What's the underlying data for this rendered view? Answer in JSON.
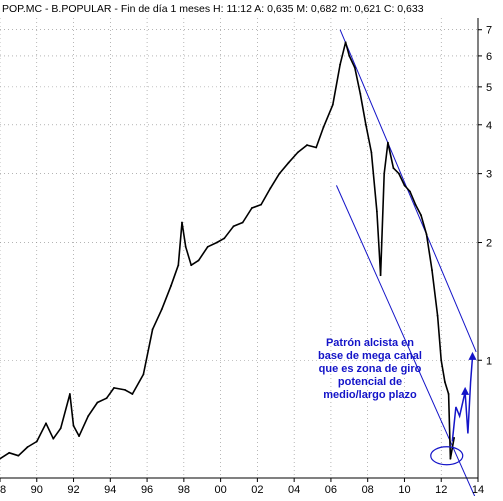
{
  "chart_data": {
    "type": "line",
    "title": "POP.MC - B.POPULAR - Fin de día 1 meses H: 11:12 A: 0,635 M: 0,682 m: 0,621 C: 0,633",
    "xlabel": "",
    "ylabel": "",
    "y_scale": "log",
    "x_range": [
      1988,
      2014
    ],
    "y_range": [
      0.5,
      7.5
    ],
    "x_ticks": [
      {
        "value": 1988,
        "label": "88"
      },
      {
        "value": 1990,
        "label": "90"
      },
      {
        "value": 1992,
        "label": "92"
      },
      {
        "value": 1994,
        "label": "94"
      },
      {
        "value": 1996,
        "label": "96"
      },
      {
        "value": 1998,
        "label": "98"
      },
      {
        "value": 2000,
        "label": "00"
      },
      {
        "value": 2002,
        "label": "02"
      },
      {
        "value": 2004,
        "label": "04"
      },
      {
        "value": 2006,
        "label": "06"
      },
      {
        "value": 2008,
        "label": "08"
      },
      {
        "value": 2010,
        "label": "10"
      },
      {
        "value": 2012,
        "label": "12"
      },
      {
        "value": 2014,
        "label": "14"
      }
    ],
    "y_ticks": [
      {
        "value": 1,
        "label": "1"
      },
      {
        "value": 2,
        "label": "2"
      },
      {
        "value": 3,
        "label": "3"
      },
      {
        "value": 4,
        "label": "4"
      },
      {
        "value": 5,
        "label": "5"
      },
      {
        "value": 6,
        "label": "6"
      },
      {
        "value": 7,
        "label": "7"
      }
    ],
    "series": [
      {
        "x": [
          1988.0,
          1988.5,
          1989.0,
          1989.5,
          1990.0,
          1990.5,
          1990.9,
          1991.3,
          1991.8,
          1992.0,
          1992.3,
          1992.8,
          1993.3,
          1993.8,
          1994.2,
          1994.8,
          1995.2,
          1995.8,
          1996.3,
          1996.8,
          1997.3,
          1997.7,
          1997.9,
          1998.1,
          1998.4,
          1998.8,
          1999.3,
          1999.8,
          2000.2,
          2000.7,
          2001.2,
          2001.7,
          2002.2,
          2002.7,
          2003.2,
          2003.7,
          2004.2,
          2004.7,
          2005.2,
          2005.6,
          2006.1,
          2006.5,
          2006.8,
          2007.0,
          2007.3,
          2007.6,
          2007.9,
          2008.2,
          2008.5,
          2008.7,
          2008.9,
          2009.1,
          2009.4,
          2009.7,
          2010.0,
          2010.3,
          2010.6,
          2010.9,
          2011.2,
          2011.5,
          2011.8,
          2012.0,
          2012.2,
          2012.4,
          2012.5,
          2012.7
        ],
        "y": [
          0.56,
          0.58,
          0.57,
          0.6,
          0.62,
          0.69,
          0.63,
          0.67,
          0.82,
          0.68,
          0.64,
          0.72,
          0.78,
          0.8,
          0.85,
          0.84,
          0.82,
          0.92,
          1.2,
          1.35,
          1.55,
          1.75,
          2.25,
          1.95,
          1.75,
          1.8,
          1.95,
          2.0,
          2.05,
          2.2,
          2.25,
          2.45,
          2.5,
          2.75,
          3.0,
          3.2,
          3.4,
          3.55,
          3.5,
          3.95,
          4.5,
          5.7,
          6.5,
          6.0,
          5.6,
          4.8,
          4.0,
          3.4,
          2.4,
          1.65,
          3.0,
          3.6,
          3.1,
          3.0,
          2.8,
          2.7,
          2.5,
          2.35,
          2.1,
          1.7,
          1.3,
          1.0,
          0.88,
          0.82,
          0.56,
          0.633
        ]
      }
    ],
    "channel_lines": [
      {
        "x": [
          2006.5,
          2013.9
        ],
        "y": [
          7.0,
          1.05
        ]
      },
      {
        "x": [
          2006.3,
          2014.0
        ],
        "y": [
          2.8,
          0.43
        ]
      }
    ],
    "arrow_path": {
      "x": [
        2012.6,
        2012.8,
        2013.0,
        2013.3,
        2013.45,
        2013.6,
        2013.7
      ],
      "y": [
        0.62,
        0.76,
        0.72,
        0.83,
        0.65,
        0.88,
        1.02
      ]
    },
    "ellipse_center": {
      "x": 2012.3,
      "y": 0.57
    },
    "annotation_lines": [
      "Patrón alcista en",
      "base de mega canal",
      "que es zona de giro",
      "potencial de",
      "medio/largo plazo"
    ],
    "colors": {
      "price": "#000000",
      "annotation": "#1414c8",
      "grid": "#888888",
      "axis": "#000000"
    }
  }
}
